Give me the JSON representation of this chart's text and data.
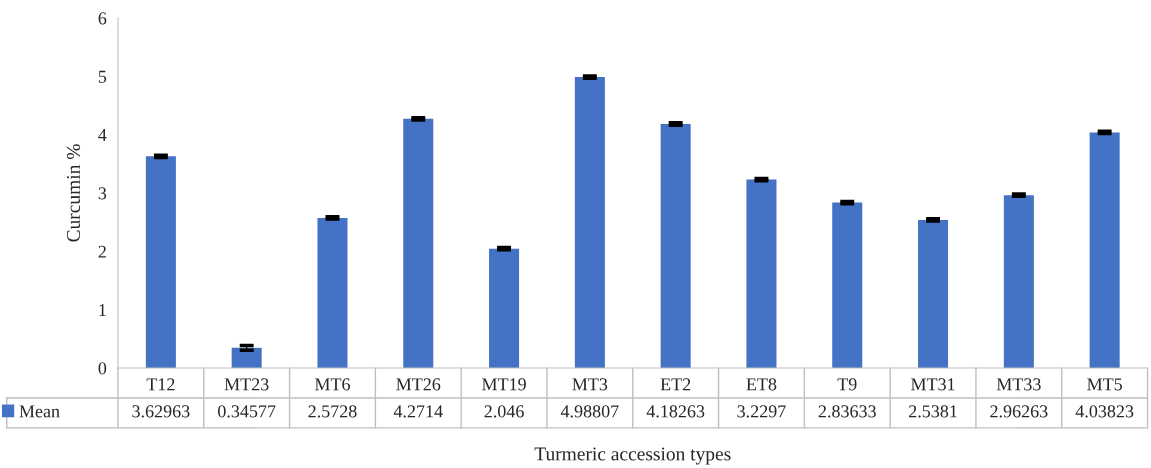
{
  "chart_data": {
    "type": "bar",
    "xlabel": "Turmeric accession types",
    "ylabel": "Curcumin %",
    "categories": [
      "T12",
      "MT23",
      "MT6",
      "MT26",
      "MT19",
      "MT3",
      "ET2",
      "ET8",
      "T9",
      "MT31",
      "MT33",
      "MT5"
    ],
    "series": [
      {
        "name": "Mean",
        "color": "#4472c4",
        "values": [
          3.62963,
          0.34577,
          2.5728,
          4.2714,
          2.046,
          4.98807,
          4.18263,
          3.2297,
          2.83633,
          2.5381,
          2.96263,
          4.03823
        ],
        "errors": [
          0.02,
          0.04,
          0.02,
          0.02,
          0.02,
          0.02,
          0.02,
          0.02,
          0.02,
          0.02,
          0.02,
          0.02
        ]
      }
    ],
    "ylim": [
      0,
      6
    ],
    "yticks": [
      0,
      1,
      2,
      3,
      4,
      5,
      6
    ],
    "data_labels": true,
    "legend": "bottom left",
    "grid": false
  }
}
